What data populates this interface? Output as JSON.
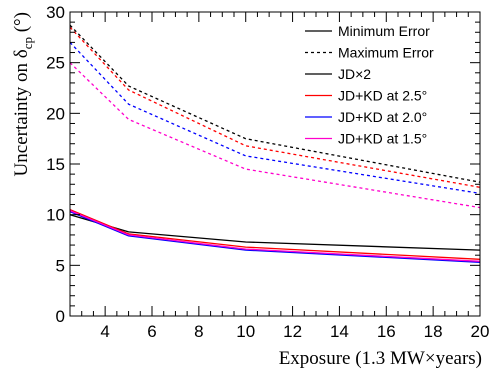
{
  "chart_data": {
    "type": "line",
    "xlabel": "Exposure (1.3 MW×years)",
    "ylabel": "Uncertainty on δ",
    "ylabel_sub": "cp",
    "ylabel_unit": " (°)",
    "xlim": [
      2.5,
      20
    ],
    "ylim": [
      0,
      30
    ],
    "x_ticks": [
      4,
      6,
      8,
      10,
      12,
      14,
      16,
      18,
      20
    ],
    "y_ticks": [
      0,
      5,
      10,
      15,
      20,
      25,
      30
    ],
    "x_minor_step": 0.5,
    "y_minor_step": 1,
    "grid": false,
    "legend_position": "top-right",
    "legend": [
      {
        "label": "Minimum Error",
        "color": "#000000",
        "dash": "solid"
      },
      {
        "label": "Maximum Error",
        "color": "#000000",
        "dash": "dashed"
      },
      {
        "label": "JD×2",
        "color": "#000000",
        "dash": "solid"
      },
      {
        "label": "JD+KD at 2.5°",
        "color": "#ff0000",
        "dash": "solid"
      },
      {
        "label": "JD+KD at 2.0°",
        "color": "#0000ff",
        "dash": "solid"
      },
      {
        "label": "JD+KD at 1.5°",
        "color": "#ff00cc",
        "dash": "solid"
      }
    ],
    "series": [
      {
        "group": "JD×2",
        "kind": "min",
        "color": "#000000",
        "dash": "solid",
        "x": [
          2.5,
          5,
          10,
          20
        ],
        "values": [
          10.0,
          8.3,
          7.3,
          6.5
        ]
      },
      {
        "group": "JD×2",
        "kind": "max",
        "color": "#000000",
        "dash": "dashed",
        "x": [
          2.5,
          5,
          10,
          20
        ],
        "values": [
          28.7,
          22.7,
          17.5,
          13.2
        ]
      },
      {
        "group": "JD+KD at 2.5°",
        "kind": "min",
        "color": "#ff0000",
        "dash": "solid",
        "x": [
          2.5,
          5,
          10,
          20
        ],
        "values": [
          10.5,
          8.1,
          6.8,
          5.6
        ]
      },
      {
        "group": "JD+KD at 2.5°",
        "kind": "max",
        "color": "#ff0000",
        "dash": "dashed",
        "x": [
          2.5,
          5,
          10,
          20
        ],
        "values": [
          28.5,
          22.3,
          16.8,
          12.7
        ]
      },
      {
        "group": "JD+KD at 2.0°",
        "kind": "min",
        "color": "#0000ff",
        "dash": "solid",
        "x": [
          2.5,
          5,
          10,
          20
        ],
        "values": [
          10.3,
          7.9,
          6.5,
          5.3
        ]
      },
      {
        "group": "JD+KD at 2.0°",
        "kind": "max",
        "color": "#0000ff",
        "dash": "dashed",
        "x": [
          2.5,
          5,
          10,
          20
        ],
        "values": [
          27.0,
          20.9,
          15.8,
          12.1
        ]
      },
      {
        "group": "JD+KD at 1.5°",
        "kind": "min",
        "color": "#ff00cc",
        "dash": "solid",
        "x": [
          2.5,
          5,
          10,
          20
        ],
        "values": [
          10.4,
          8.0,
          6.6,
          5.4
        ]
      },
      {
        "group": "JD+KD at 1.5°",
        "kind": "max",
        "color": "#ff00cc",
        "dash": "dashed",
        "x": [
          2.5,
          5,
          10,
          20
        ],
        "values": [
          25.0,
          19.4,
          14.5,
          10.7
        ]
      }
    ]
  }
}
